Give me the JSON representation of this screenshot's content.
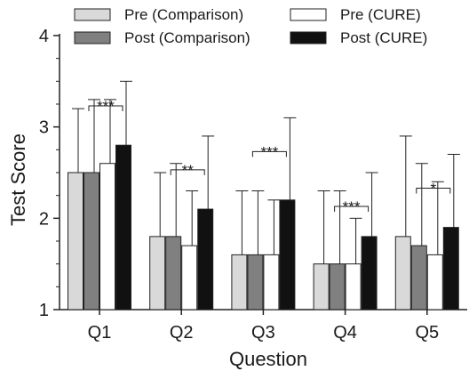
{
  "chart_data": {
    "type": "bar",
    "title": "",
    "xlabel": "Question",
    "ylabel": "Test Score",
    "ylim": [
      1,
      4
    ],
    "yticks": [
      1,
      2,
      3,
      4
    ],
    "grid": false,
    "legend_position": "top",
    "categories": [
      "Q1",
      "Q2",
      "Q3",
      "Q4",
      "Q5"
    ],
    "series": [
      {
        "name": "Pre (Comparison)",
        "color": "#d9d9d9",
        "values": [
          2.5,
          1.8,
          1.6,
          1.5,
          1.8
        ],
        "error_upper": [
          3.2,
          2.5,
          2.3,
          2.3,
          2.9
        ]
      },
      {
        "name": "Post (Comparison)",
        "color": "#808080",
        "values": [
          2.5,
          1.8,
          1.6,
          1.5,
          1.7
        ],
        "error_upper": [
          3.3,
          2.6,
          2.3,
          2.3,
          2.6
        ]
      },
      {
        "name": "Pre (CURE)",
        "color": "#ffffff",
        "values": [
          2.6,
          1.7,
          1.6,
          1.5,
          1.6
        ],
        "error_upper": [
          3.3,
          2.3,
          2.2,
          2.0,
          2.4
        ]
      },
      {
        "name": "Post (CURE)",
        "color": "#111111",
        "values": [
          2.8,
          2.1,
          2.2,
          1.8,
          1.9
        ],
        "error_upper": [
          3.5,
          2.9,
          3.1,
          2.5,
          2.7
        ]
      }
    ],
    "annotations": [
      {
        "category": "Q1",
        "text": "***",
        "y": 3.23
      },
      {
        "category": "Q2",
        "text": "**",
        "y": 2.53
      },
      {
        "category": "Q3",
        "text": "***",
        "y": 2.73
      },
      {
        "category": "Q4",
        "text": "***",
        "y": 2.13
      },
      {
        "category": "Q5",
        "text": "*",
        "y": 2.33
      }
    ]
  }
}
